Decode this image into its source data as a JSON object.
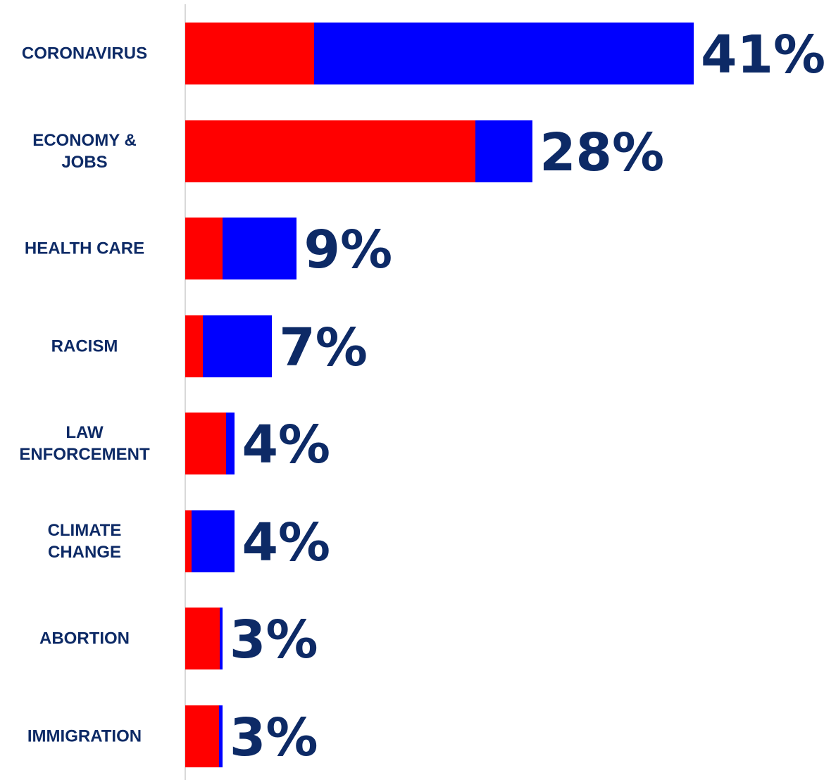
{
  "chart_data": {
    "type": "bar",
    "orientation": "horizontal",
    "stacked": true,
    "categories": [
      "CORONAVIRUS",
      "ECONOMY &\nJOBS",
      "HEALTH CARE",
      "RACISM",
      "LAW\nENFORCEMENT",
      "CLIMATE\nCHANGE",
      "ABORTION",
      "IMMIGRATION"
    ],
    "totals": [
      41,
      28,
      9,
      7,
      4,
      4,
      3,
      3
    ],
    "total_labels": [
      "41%",
      "28%",
      "9%",
      "7%",
      "4%",
      "4%",
      "3%",
      "3%"
    ],
    "series": [
      {
        "color": "#ff0000",
        "values": [
          10.4,
          23.4,
          3.0,
          1.4,
          3.3,
          0.5,
          2.8,
          2.7
        ]
      },
      {
        "color": "#0000ff",
        "values": [
          30.6,
          4.6,
          6.0,
          5.6,
          0.7,
          3.5,
          0.2,
          0.3
        ]
      }
    ],
    "xlim": [
      0,
      41
    ],
    "grid": false,
    "legend": "none"
  },
  "colors": {
    "label_text": "#0d2a66",
    "axis_line": "#d9d9d9",
    "red": "#ff0000",
    "blue": "#0000ff"
  }
}
